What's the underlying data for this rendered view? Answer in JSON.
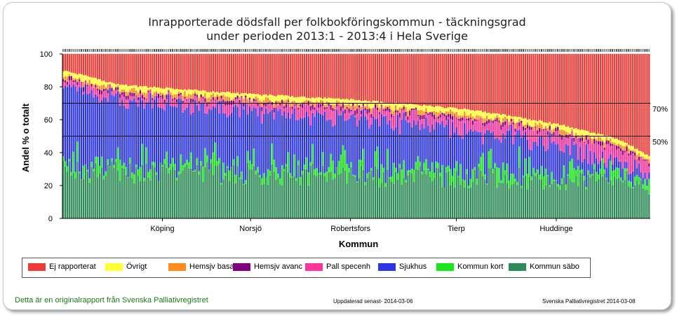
{
  "chart_data": {
    "type": "bar",
    "stacked": true,
    "title_line1": "Inrapporterade dödsfall per folkbokföringskommun - täckningsgrad",
    "title_line2": "under perioden 2013:1 - 2013:4 i Hela Sverige",
    "xlabel": "Kommun",
    "ylabel": "Andel % o totalt",
    "ylim": [
      0,
      100
    ],
    "yticks": [
      0,
      20,
      40,
      60,
      80,
      100
    ],
    "x_tick_labels": [
      "Köping",
      "Norsjö",
      "Robertsfors",
      "Tierp",
      "Huddinge"
    ],
    "x_tick_positions": [
      0.17,
      0.32,
      0.49,
      0.67,
      0.84
    ],
    "num_bars": 290,
    "reference_lines": [
      {
        "value": 70,
        "label": "70%"
      },
      {
        "value": 50,
        "label": "50%"
      }
    ],
    "series": [
      {
        "name": "Ej rapporterat",
        "color": "#f03a35"
      },
      {
        "name": "Övrigt",
        "color": "#ffff33"
      },
      {
        "name": "Hemsjv basal",
        "color": "#ff8c1a"
      },
      {
        "name": "Hemsjv avanc",
        "color": "#800080"
      },
      {
        "name": "Pall specenh",
        "color": "#ff3399"
      },
      {
        "name": "Sjukhus",
        "color": "#2e35e6"
      },
      {
        "name": "Kommun kort",
        "color": "#19e619"
      },
      {
        "name": "Kommun säbo",
        "color": "#2e8b57"
      }
    ],
    "reported_share_profile": [
      {
        "x": 0.0,
        "y": 90
      },
      {
        "x": 0.1,
        "y": 81
      },
      {
        "x": 0.3,
        "y": 76
      },
      {
        "x": 0.5,
        "y": 72
      },
      {
        "x": 0.7,
        "y": 66
      },
      {
        "x": 0.85,
        "y": 57
      },
      {
        "x": 0.95,
        "y": 48
      },
      {
        "x": 1.0,
        "y": 38
      }
    ]
  },
  "footer": {
    "left": "Detta är en originalrapport från Svenska Palliativregistret",
    "center": "Uppdaterad senast- 2014-03-06",
    "right": "Svenska Palliativregistret 2014-03-08"
  }
}
